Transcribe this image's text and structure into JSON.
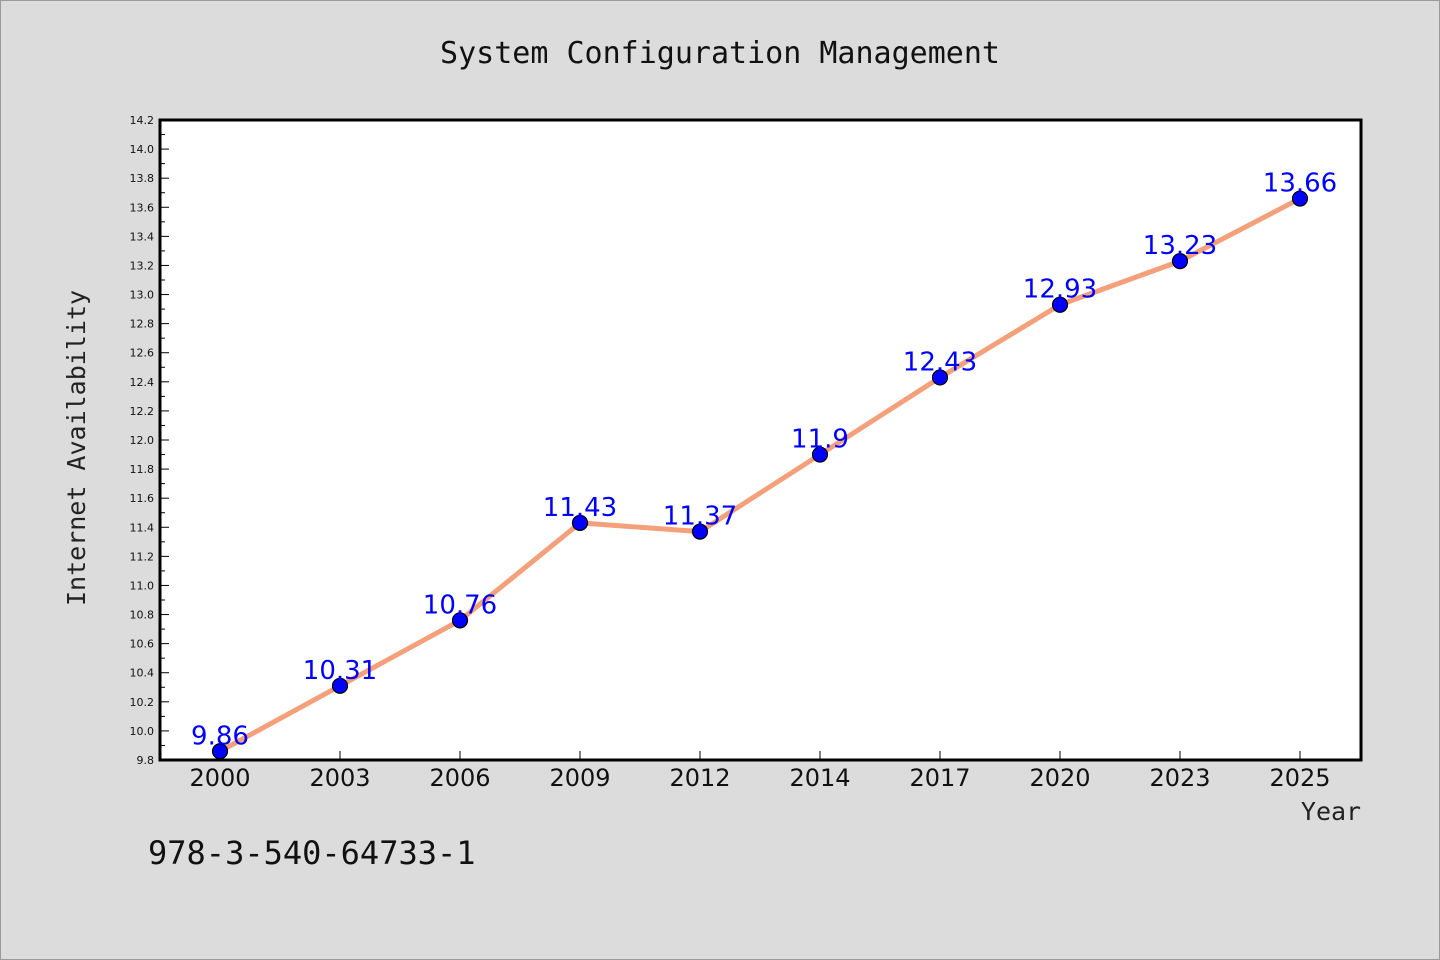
{
  "chart_data": {
    "type": "line",
    "title": "System Configuration Management",
    "xlabel": "Year",
    "ylabel": "Internet Availability",
    "categories": [
      "2000",
      "2003",
      "2006",
      "2009",
      "2012",
      "2014",
      "2017",
      "2020",
      "2023",
      "2025"
    ],
    "series": [
      {
        "values": [
          9.86,
          10.31,
          10.76,
          11.43,
          11.37,
          11.9,
          12.43,
          12.93,
          13.23,
          13.66
        ],
        "data_labels": [
          "9.86",
          "10.31",
          "10.76",
          "11.43",
          "11.37",
          "11.9",
          "12.43",
          "12.93",
          "13.23",
          "13.66"
        ]
      }
    ],
    "ylim": [
      9.8,
      14.2
    ],
    "yticks": [
      "9.8",
      "10.0",
      "10.2",
      "10.4",
      "10.6",
      "10.8",
      "11.0",
      "11.2",
      "11.4",
      "11.6",
      "11.8",
      "12.0",
      "12.2",
      "12.4",
      "12.6",
      "12.8",
      "13.0",
      "13.2",
      "13.4",
      "13.6",
      "13.8",
      "14.0",
      "14.2"
    ],
    "grid": false,
    "line_color": "#f4a07a",
    "marker_color": "#0000ff",
    "label_color": "#0000ff"
  },
  "footnote": "978-3-540-64733-1"
}
